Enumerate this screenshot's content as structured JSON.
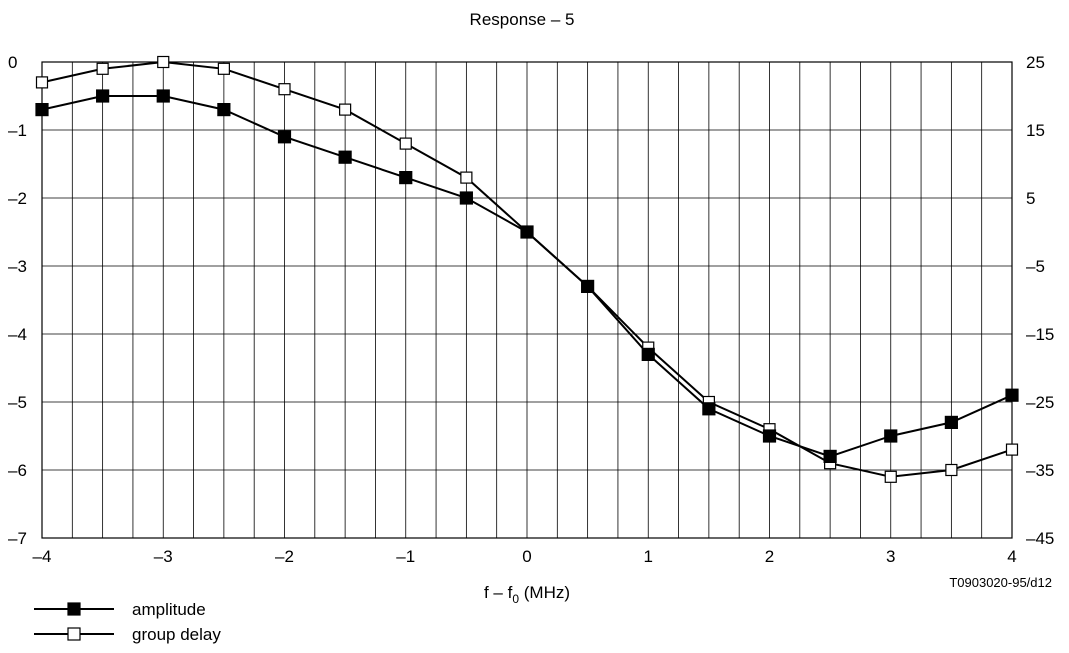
{
  "chart_data": {
    "type": "line",
    "title": "Response – 5",
    "xlabel_main": "f – f",
    "xlabel_sub": "0",
    "xlabel_unit": " (MHz)",
    "reference": "T0903020-95/d12",
    "x_ticks": [
      "–4",
      "–3",
      "–2",
      "–1",
      "0",
      "1",
      "2",
      "3",
      "4"
    ],
    "y_left_ticks": [
      "0",
      "–1",
      "–2",
      "–3",
      "–4",
      "–5",
      "–6",
      "–7"
    ],
    "y_right_ticks": [
      "25",
      "15",
      "5",
      "–5",
      "–15",
      "–25",
      "–35",
      "–45"
    ],
    "xlim": [
      -4,
      4
    ],
    "ylim_left": [
      -7,
      0
    ],
    "ylim_right": [
      -45,
      25
    ],
    "grid": true,
    "x": [
      -4,
      -3.5,
      -3,
      -2.5,
      -2,
      -1.5,
      -1,
      -0.5,
      0,
      0.5,
      1,
      1.5,
      2,
      2.5,
      3,
      3.5,
      4
    ],
    "series": [
      {
        "name": "amplitude",
        "axis": "left",
        "marker": "filled-square",
        "values": [
          -0.7,
          -0.5,
          -0.5,
          -0.7,
          -1.1,
          -1.4,
          -1.7,
          -2.0,
          -2.5,
          -3.3,
          -4.3,
          -5.1,
          -5.5,
          -5.8,
          -5.5,
          -5.3,
          -4.9
        ]
      },
      {
        "name": "group delay",
        "axis": "left",
        "marker": "open-square",
        "values": [
          -0.3,
          -0.1,
          0.0,
          -0.1,
          -0.4,
          -0.7,
          -1.2,
          -1.7,
          -2.5,
          -3.3,
          -4.2,
          -5.0,
          -5.4,
          -5.9,
          -6.1,
          -6.0,
          -5.7
        ]
      }
    ],
    "legend_position": "bottom-left"
  }
}
